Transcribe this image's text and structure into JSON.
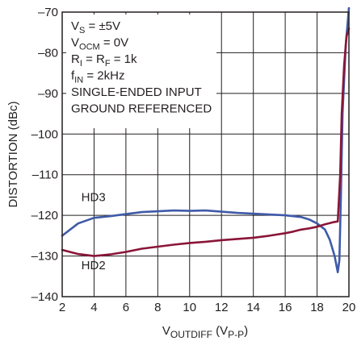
{
  "chart_data": {
    "type": "line",
    "title": "",
    "xlabel": {
      "base": "V",
      "sub": "OUTDIFF",
      "paren": " (V",
      "paren_sub": "P-P",
      "close": ")"
    },
    "ylabel": "DISTORTION (dBc)",
    "xlim": [
      2,
      20
    ],
    "ylim": [
      -140,
      -70
    ],
    "x_ticks": [
      2,
      4,
      6,
      8,
      10,
      12,
      14,
      16,
      18,
      20
    ],
    "y_ticks": [
      -70,
      -80,
      -90,
      -100,
      -110,
      -120,
      -130,
      -140
    ],
    "x_tick_labels": [
      "2",
      "4",
      "6",
      "8",
      "10",
      "12",
      "14",
      "16",
      "18",
      "20"
    ],
    "y_tick_labels": [
      "–70",
      "–80",
      "–90",
      "–100",
      "–110",
      "–120",
      "–130",
      "–140"
    ],
    "grid": true,
    "conditions": [
      {
        "main": "V",
        "sub": "S",
        "rest": " = ±5V"
      },
      {
        "main": "V",
        "sub": "OCM",
        "rest": " = 0V"
      },
      {
        "main": "R",
        "sub": "I",
        "rest": " = R",
        "sub2": "F",
        "rest2": " = 1k"
      },
      {
        "main": "f",
        "sub": "IN",
        "rest": " = 2kHz"
      },
      {
        "main": "SINGLE-ENDED INPUT"
      },
      {
        "main": "GROUND REFERENCED"
      }
    ],
    "series": [
      {
        "name": "HD3",
        "color": "#3f5aa8",
        "x": [
          2,
          3,
          4,
          5,
          6,
          7,
          8,
          9,
          10,
          11,
          12,
          13,
          14,
          15,
          16,
          17,
          17.5,
          18,
          18.5,
          18.8,
          19.1,
          19.3,
          19.4,
          19.5,
          19.6,
          19.8,
          20
        ],
        "y": [
          -125,
          -122,
          -120.6,
          -120.2,
          -119.7,
          -119.2,
          -119,
          -118.8,
          -118.9,
          -118.8,
          -119.1,
          -119.4,
          -119.6,
          -119.8,
          -120,
          -120.4,
          -121,
          -122,
          -123.5,
          -126,
          -130,
          -134,
          -131,
          -115,
          -95,
          -78,
          -69
        ]
      },
      {
        "name": "HD2",
        "color": "#8a1538",
        "x": [
          2,
          3,
          4,
          5,
          6,
          7,
          8,
          9,
          10,
          11,
          12,
          13,
          14,
          15,
          16,
          16.5,
          17,
          17.5,
          18,
          18.5,
          19,
          19.3,
          19.45,
          19.55,
          19.7,
          19.85,
          20
        ],
        "y": [
          -128.5,
          -129.5,
          -130,
          -129.6,
          -129,
          -128.2,
          -127.7,
          -127.2,
          -126.8,
          -126.5,
          -126.1,
          -125.8,
          -125.5,
          -125,
          -124.4,
          -124,
          -123.5,
          -123.2,
          -122.8,
          -122.2,
          -121.7,
          -121.5,
          -110,
          -95,
          -83,
          -76,
          -74
        ]
      }
    ],
    "series_labels": [
      {
        "text": "HD3",
        "at_x": 3.2,
        "at_y": -116.5
      },
      {
        "text": "HD2",
        "at_x": 3.2,
        "at_y": -133.3
      }
    ]
  }
}
